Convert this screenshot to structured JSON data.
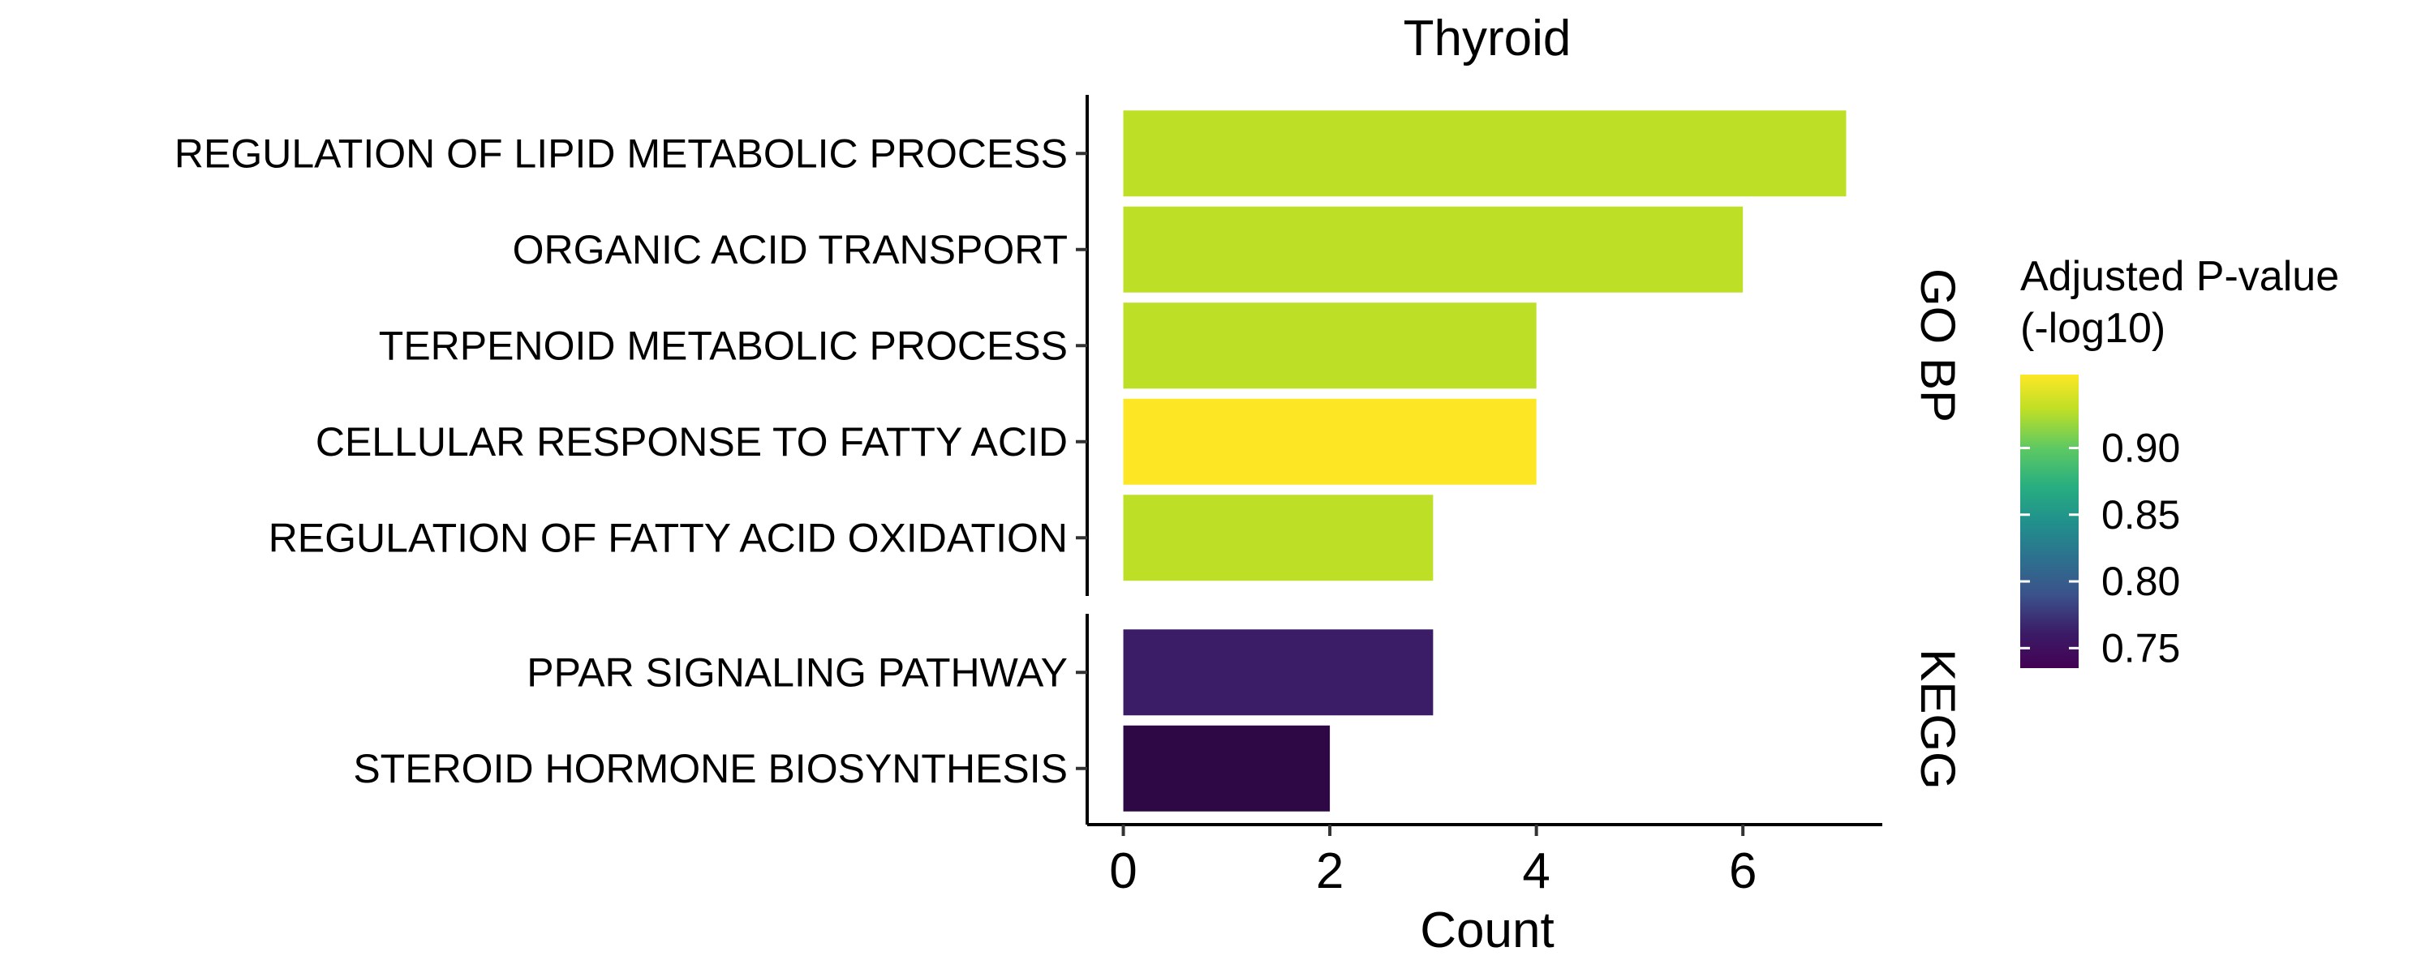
{
  "chart_data": {
    "type": "bar",
    "orientation": "horizontal",
    "title": "Thyroid",
    "xlabel": "Count",
    "ylabel": "",
    "xlim": [
      -0.35,
      7.35
    ],
    "xticks": [
      "0",
      "2",
      "4",
      "6"
    ],
    "legend": {
      "title_line1": "Adjusted P-value",
      "title_line2": "(-log10)",
      "ticks": [
        "0.75",
        "0.80",
        "0.85",
        "0.90"
      ],
      "range": [
        0.735,
        0.955
      ],
      "placement": "right",
      "colormap": "viridis"
    },
    "grid": false,
    "facets": [
      {
        "label": "GO BP",
        "bars": [
          {
            "term": "REGULATION OF LIPID METABOLIC PROCESS",
            "count": 7,
            "p": 0.93,
            "color": "#bddf26"
          },
          {
            "term": "ORGANIC ACID TRANSPORT",
            "count": 6,
            "p": 0.93,
            "color": "#bddf26"
          },
          {
            "term": "TERPENOID METABOLIC PROCESS",
            "count": 4,
            "p": 0.93,
            "color": "#bddf26"
          },
          {
            "term": "CELLULAR RESPONSE TO FATTY ACID",
            "count": 4,
            "p": 0.955,
            "color": "#fde725"
          },
          {
            "term": "REGULATION OF FATTY ACID OXIDATION",
            "count": 3,
            "p": 0.93,
            "color": "#bddf26"
          }
        ]
      },
      {
        "label": "KEGG",
        "bars": [
          {
            "term": "PPAR SIGNALING PATHWAY",
            "count": 3,
            "p": 0.78,
            "color": "#3b1c67"
          },
          {
            "term": "STEROID HORMONE BIOSYNTHESIS",
            "count": 2,
            "p": 0.735,
            "color": "#2d0845"
          }
        ]
      }
    ]
  }
}
